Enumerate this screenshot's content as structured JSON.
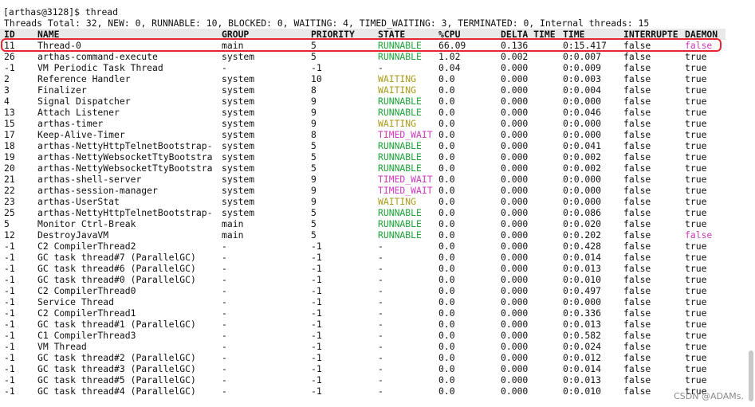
{
  "terminal": {
    "prompt": "[arthas@3128]$ thread",
    "summary": "Threads Total: 32, NEW: 0, RUNNABLE: 10, BLOCKED: 0, WAITING: 4, TIMED_WAITING: 3, TERMINATED: 0, Internal threads: 15"
  },
  "table": {
    "headers": [
      "ID",
      "NAME",
      "GROUP",
      "PRIORITY",
      "STATE",
      "%CPU",
      "DELTA_TIME",
      "TIME",
      "INTERRUPTE",
      "DAEMON"
    ],
    "rows": [
      [
        "11",
        "Thread-0",
        "main",
        "5",
        "RUNNABLE",
        "66.09",
        "0.136",
        "0:15.417",
        "false",
        "false"
      ],
      [
        "26",
        "arthas-command-execute",
        "system",
        "5",
        "RUNNABLE",
        "1.02",
        "0.002",
        "0:0.007",
        "false",
        "true"
      ],
      [
        "-1",
        "VM Periodic Task Thread",
        "-",
        "-1",
        "-",
        "0.04",
        "0.000",
        "0:0.009",
        "false",
        "true"
      ],
      [
        "2",
        "Reference Handler",
        "system",
        "10",
        "WAITING",
        "0.0",
        "0.000",
        "0:0.003",
        "false",
        "true"
      ],
      [
        "3",
        "Finalizer",
        "system",
        "8",
        "WAITING",
        "0.0",
        "0.000",
        "0:0.004",
        "false",
        "true"
      ],
      [
        "4",
        "Signal Dispatcher",
        "system",
        "9",
        "RUNNABLE",
        "0.0",
        "0.000",
        "0:0.000",
        "false",
        "true"
      ],
      [
        "13",
        "Attach Listener",
        "system",
        "9",
        "RUNNABLE",
        "0.0",
        "0.000",
        "0:0.046",
        "false",
        "true"
      ],
      [
        "15",
        "arthas-timer",
        "system",
        "9",
        "WAITING",
        "0.0",
        "0.000",
        "0:0.000",
        "false",
        "true"
      ],
      [
        "17",
        "Keep-Alive-Timer",
        "system",
        "8",
        "TIMED_WAIT",
        "0.0",
        "0.000",
        "0:0.000",
        "false",
        "true"
      ],
      [
        "18",
        "arthas-NettyHttpTelnetBootstrap-",
        "system",
        "5",
        "RUNNABLE",
        "0.0",
        "0.000",
        "0:0.041",
        "false",
        "true"
      ],
      [
        "19",
        "arthas-NettyWebsocketTtyBootstra",
        "system",
        "5",
        "RUNNABLE",
        "0.0",
        "0.000",
        "0:0.002",
        "false",
        "true"
      ],
      [
        "20",
        "arthas-NettyWebsocketTtyBootstra",
        "system",
        "5",
        "RUNNABLE",
        "0.0",
        "0.000",
        "0:0.002",
        "false",
        "true"
      ],
      [
        "21",
        "arthas-shell-server",
        "system",
        "9",
        "TIMED_WAIT",
        "0.0",
        "0.000",
        "0:0.000",
        "false",
        "true"
      ],
      [
        "22",
        "arthas-session-manager",
        "system",
        "9",
        "TIMED_WAIT",
        "0.0",
        "0.000",
        "0:0.000",
        "false",
        "true"
      ],
      [
        "23",
        "arthas-UserStat",
        "system",
        "9",
        "WAITING",
        "0.0",
        "0.000",
        "0:0.000",
        "false",
        "true"
      ],
      [
        "25",
        "arthas-NettyHttpTelnetBootstrap-",
        "system",
        "5",
        "RUNNABLE",
        "0.0",
        "0.000",
        "0:0.086",
        "false",
        "true"
      ],
      [
        "5",
        "Monitor Ctrl-Break",
        "main",
        "5",
        "RUNNABLE",
        "0.0",
        "0.000",
        "0:0.020",
        "false",
        "true"
      ],
      [
        "12",
        "DestroyJavaVM",
        "main",
        "5",
        "RUNNABLE",
        "0.0",
        "0.000",
        "0:0.202",
        "false",
        "false"
      ],
      [
        "-1",
        "C2 CompilerThread2",
        "-",
        "-1",
        "-",
        "0.0",
        "0.000",
        "0:0.428",
        "false",
        "true"
      ],
      [
        "-1",
        "GC task thread#7 (ParallelGC)",
        "-",
        "-1",
        "-",
        "0.0",
        "0.000",
        "0:0.014",
        "false",
        "true"
      ],
      [
        "-1",
        "GC task thread#6 (ParallelGC)",
        "-",
        "-1",
        "-",
        "0.0",
        "0.000",
        "0:0.013",
        "false",
        "true"
      ],
      [
        "-1",
        "GC task thread#0 (ParallelGC)",
        "-",
        "-1",
        "-",
        "0.0",
        "0.000",
        "0:0.010",
        "false",
        "true"
      ],
      [
        "-1",
        "C2 CompilerThread0",
        "-",
        "-1",
        "-",
        "0.0",
        "0.000",
        "0:0.497",
        "false",
        "true"
      ],
      [
        "-1",
        "Service Thread",
        "-",
        "-1",
        "-",
        "0.0",
        "0.000",
        "0:0.000",
        "false",
        "true"
      ],
      [
        "-1",
        "C2 CompilerThread1",
        "-",
        "-1",
        "-",
        "0.0",
        "0.000",
        "0:0.336",
        "false",
        "true"
      ],
      [
        "-1",
        "GC task thread#1 (ParallelGC)",
        "-",
        "-1",
        "-",
        "0.0",
        "0.000",
        "0:0.013",
        "false",
        "true"
      ],
      [
        "-1",
        "C1 CompilerThread3",
        "-",
        "-1",
        "-",
        "0.0",
        "0.000",
        "0:0.582",
        "false",
        "true"
      ],
      [
        "-1",
        "VM Thread",
        "-",
        "-1",
        "-",
        "0.0",
        "0.000",
        "0:0.024",
        "false",
        "true"
      ],
      [
        "-1",
        "GC task thread#2 (ParallelGC)",
        "-",
        "-1",
        "-",
        "0.0",
        "0.000",
        "0:0.012",
        "false",
        "true"
      ],
      [
        "-1",
        "GC task thread#3 (ParallelGC)",
        "-",
        "-1",
        "-",
        "0.0",
        "0.000",
        "0:0.014",
        "false",
        "true"
      ],
      [
        "-1",
        "GC task thread#5 (ParallelGC)",
        "-",
        "-1",
        "-",
        "0.0",
        "0.000",
        "0:0.013",
        "false",
        "true"
      ],
      [
        "-1",
        "GC task thread#4 (ParallelGC)",
        "-",
        "-1",
        "-",
        "0.0",
        "0.000",
        "0:0.010",
        "false",
        "true"
      ]
    ]
  },
  "highlight": {
    "row_index": 0,
    "color": "#e8262f"
  },
  "colors": {
    "runnable": "#1fa33a",
    "waiting": "#a99b1b",
    "timed_waiting": "#cc3bbd",
    "daemon_false": "#cc3bbd",
    "header_background": "#e9e9e9"
  },
  "watermark": "CSDN @ADAMs."
}
